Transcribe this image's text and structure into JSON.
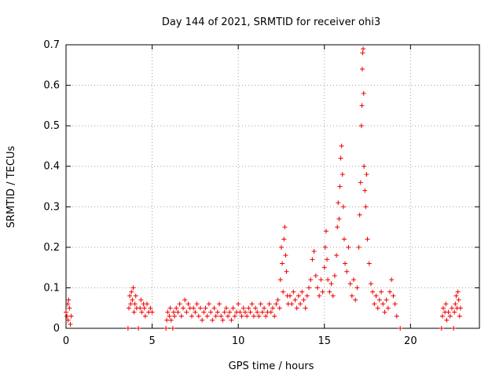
{
  "chart_data": {
    "type": "scatter",
    "title": "Day 144 of 2021, SRMTID for receiver ohi3",
    "xlabel": "GPS time / hours",
    "ylabel": "SRMTID / TECUs",
    "xlim": [
      0,
      24
    ],
    "ylim": [
      0,
      0.7
    ],
    "xticks": [
      0,
      5,
      10,
      15,
      20
    ],
    "xtick_labels": [
      "0",
      "5",
      "10",
      "15",
      "20"
    ],
    "yticks": [
      0,
      0.1,
      0.2,
      0.3,
      0.4,
      0.5,
      0.6,
      0.7
    ],
    "ytick_labels": [
      "0",
      "0.1",
      "0.2",
      "0.3",
      "0.4",
      "0.5",
      "0.6",
      "0.7"
    ],
    "grid": true,
    "marker": "+",
    "colors": {
      "points": "#ee0000",
      "grid": "#a0a0a0",
      "axes": "#000000"
    },
    "series": [
      {
        "name": "SRMTID",
        "points": [
          [
            0.0,
            0.04
          ],
          [
            0.05,
            0.03
          ],
          [
            0.1,
            0.06
          ],
          [
            0.12,
            0.02
          ],
          [
            0.15,
            0.07
          ],
          [
            0.2,
            0.05
          ],
          [
            0.25,
            0.01
          ],
          [
            0.3,
            0.03
          ],
          [
            3.6,
            0.0
          ],
          [
            3.65,
            0.05
          ],
          [
            3.7,
            0.08
          ],
          [
            3.75,
            0.06
          ],
          [
            3.8,
            0.09
          ],
          [
            3.85,
            0.07
          ],
          [
            3.9,
            0.1
          ],
          [
            3.95,
            0.04
          ],
          [
            4.0,
            0.06
          ],
          [
            4.05,
            0.08
          ],
          [
            4.1,
            0.05
          ],
          [
            4.2,
            0.0
          ],
          [
            4.3,
            0.05
          ],
          [
            4.35,
            0.07
          ],
          [
            4.4,
            0.04
          ],
          [
            4.5,
            0.06
          ],
          [
            4.55,
            0.05
          ],
          [
            4.6,
            0.03
          ],
          [
            4.7,
            0.06
          ],
          [
            4.8,
            0.04
          ],
          [
            4.9,
            0.05
          ],
          [
            5.0,
            0.04
          ],
          [
            5.8,
            0.0
          ],
          [
            5.85,
            0.02
          ],
          [
            5.9,
            0.04
          ],
          [
            6.0,
            0.03
          ],
          [
            6.05,
            0.05
          ],
          [
            6.1,
            0.02
          ],
          [
            6.2,
            0.0
          ],
          [
            6.25,
            0.04
          ],
          [
            6.3,
            0.03
          ],
          [
            6.4,
            0.05
          ],
          [
            6.5,
            0.04
          ],
          [
            6.6,
            0.06
          ],
          [
            6.7,
            0.03
          ],
          [
            6.8,
            0.05
          ],
          [
            6.9,
            0.07
          ],
          [
            7.0,
            0.04
          ],
          [
            7.1,
            0.06
          ],
          [
            7.2,
            0.05
          ],
          [
            7.3,
            0.03
          ],
          [
            7.4,
            0.05
          ],
          [
            7.5,
            0.04
          ],
          [
            7.6,
            0.06
          ],
          [
            7.7,
            0.03
          ],
          [
            7.8,
            0.05
          ],
          [
            7.9,
            0.02
          ],
          [
            8.0,
            0.04
          ],
          [
            8.1,
            0.05
          ],
          [
            8.2,
            0.03
          ],
          [
            8.3,
            0.06
          ],
          [
            8.4,
            0.04
          ],
          [
            8.5,
            0.02
          ],
          [
            8.6,
            0.05
          ],
          [
            8.7,
            0.03
          ],
          [
            8.8,
            0.04
          ],
          [
            8.9,
            0.06
          ],
          [
            9.0,
            0.03
          ],
          [
            9.1,
            0.02
          ],
          [
            9.2,
            0.04
          ],
          [
            9.3,
            0.05
          ],
          [
            9.4,
            0.03
          ],
          [
            9.5,
            0.04
          ],
          [
            9.6,
            0.02
          ],
          [
            9.7,
            0.05
          ],
          [
            9.8,
            0.03
          ],
          [
            9.9,
            0.04
          ],
          [
            10.0,
            0.06
          ],
          [
            10.1,
            0.04
          ],
          [
            10.2,
            0.03
          ],
          [
            10.3,
            0.05
          ],
          [
            10.4,
            0.04
          ],
          [
            10.5,
            0.03
          ],
          [
            10.6,
            0.05
          ],
          [
            10.7,
            0.04
          ],
          [
            10.8,
            0.06
          ],
          [
            10.9,
            0.03
          ],
          [
            11.0,
            0.05
          ],
          [
            11.1,
            0.04
          ],
          [
            11.2,
            0.03
          ],
          [
            11.3,
            0.06
          ],
          [
            11.4,
            0.04
          ],
          [
            11.5,
            0.05
          ],
          [
            11.6,
            0.03
          ],
          [
            11.7,
            0.04
          ],
          [
            11.8,
            0.06
          ],
          [
            11.9,
            0.04
          ],
          [
            12.0,
            0.05
          ],
          [
            12.1,
            0.03
          ],
          [
            12.2,
            0.06
          ],
          [
            12.3,
            0.07
          ],
          [
            12.4,
            0.05
          ],
          [
            12.45,
            0.12
          ],
          [
            12.5,
            0.2
          ],
          [
            12.55,
            0.16
          ],
          [
            12.6,
            0.09
          ],
          [
            12.65,
            0.22
          ],
          [
            12.7,
            0.25
          ],
          [
            12.75,
            0.18
          ],
          [
            12.8,
            0.14
          ],
          [
            12.85,
            0.08
          ],
          [
            12.9,
            0.06
          ],
          [
            13.0,
            0.08
          ],
          [
            13.1,
            0.06
          ],
          [
            13.2,
            0.09
          ],
          [
            13.3,
            0.07
          ],
          [
            13.4,
            0.05
          ],
          [
            13.5,
            0.08
          ],
          [
            13.6,
            0.06
          ],
          [
            13.7,
            0.09
          ],
          [
            13.8,
            0.07
          ],
          [
            13.9,
            0.05
          ],
          [
            14.0,
            0.08
          ],
          [
            14.1,
            0.1
          ],
          [
            14.2,
            0.12
          ],
          [
            14.3,
            0.17
          ],
          [
            14.4,
            0.19
          ],
          [
            14.5,
            0.13
          ],
          [
            14.6,
            0.1
          ],
          [
            14.7,
            0.08
          ],
          [
            14.8,
            0.12
          ],
          [
            14.9,
            0.09
          ],
          [
            15.0,
            0.15
          ],
          [
            15.05,
            0.2
          ],
          [
            15.1,
            0.24
          ],
          [
            15.15,
            0.17
          ],
          [
            15.2,
            0.12
          ],
          [
            15.3,
            0.09
          ],
          [
            15.4,
            0.11
          ],
          [
            15.5,
            0.08
          ],
          [
            15.6,
            0.13
          ],
          [
            15.7,
            0.18
          ],
          [
            15.75,
            0.25
          ],
          [
            15.8,
            0.31
          ],
          [
            15.85,
            0.27
          ],
          [
            15.9,
            0.35
          ],
          [
            15.95,
            0.42
          ],
          [
            16.0,
            0.45
          ],
          [
            16.05,
            0.38
          ],
          [
            16.1,
            0.3
          ],
          [
            16.15,
            0.22
          ],
          [
            16.2,
            0.16
          ],
          [
            16.3,
            0.14
          ],
          [
            16.4,
            0.2
          ],
          [
            16.5,
            0.11
          ],
          [
            16.6,
            0.08
          ],
          [
            16.7,
            0.12
          ],
          [
            16.8,
            0.07
          ],
          [
            16.9,
            0.1
          ],
          [
            17.0,
            0.2
          ],
          [
            17.05,
            0.28
          ],
          [
            17.1,
            0.36
          ],
          [
            17.15,
            0.5
          ],
          [
            17.18,
            0.55
          ],
          [
            17.2,
            0.64
          ],
          [
            17.22,
            0.68
          ],
          [
            17.25,
            0.69
          ],
          [
            17.28,
            0.58
          ],
          [
            17.3,
            0.4
          ],
          [
            17.35,
            0.34
          ],
          [
            17.4,
            0.3
          ],
          [
            17.45,
            0.38
          ],
          [
            17.5,
            0.22
          ],
          [
            17.6,
            0.16
          ],
          [
            17.7,
            0.11
          ],
          [
            17.8,
            0.09
          ],
          [
            17.9,
            0.06
          ],
          [
            18.0,
            0.08
          ],
          [
            18.1,
            0.05
          ],
          [
            18.2,
            0.07
          ],
          [
            18.3,
            0.09
          ],
          [
            18.4,
            0.06
          ],
          [
            18.5,
            0.04
          ],
          [
            18.6,
            0.07
          ],
          [
            18.7,
            0.05
          ],
          [
            18.8,
            0.09
          ],
          [
            18.9,
            0.12
          ],
          [
            19.0,
            0.08
          ],
          [
            19.1,
            0.06
          ],
          [
            19.2,
            0.03
          ],
          [
            19.4,
            0.0
          ],
          [
            21.8,
            0.0
          ],
          [
            21.85,
            0.03
          ],
          [
            21.9,
            0.05
          ],
          [
            22.0,
            0.04
          ],
          [
            22.05,
            0.06
          ],
          [
            22.1,
            0.02
          ],
          [
            22.2,
            0.04
          ],
          [
            22.3,
            0.03
          ],
          [
            22.4,
            0.05
          ],
          [
            22.5,
            0.0
          ],
          [
            22.55,
            0.04
          ],
          [
            22.6,
            0.06
          ],
          [
            22.65,
            0.08
          ],
          [
            22.7,
            0.05
          ],
          [
            22.75,
            0.09
          ],
          [
            22.8,
            0.07
          ],
          [
            22.85,
            0.03
          ],
          [
            22.9,
            0.05
          ]
        ]
      }
    ]
  }
}
